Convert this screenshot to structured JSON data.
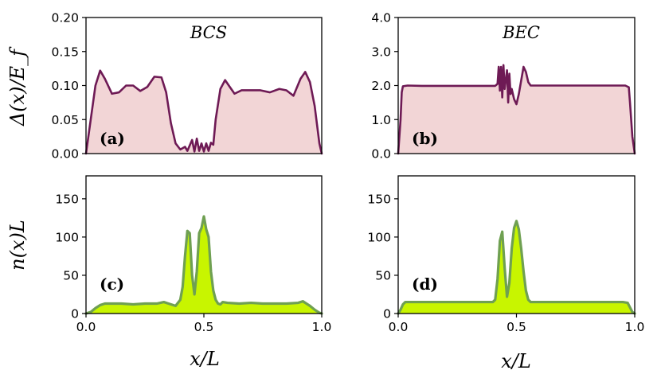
{
  "figure": {
    "ylabel_top": "Δ(x)/E_f",
    "ylabel_bottom": "n(x)L",
    "xlabel": "x/L"
  },
  "colors": {
    "gap_line": "#6e1a55",
    "gap_fill": "#f2d5d6",
    "density_line": "#6fa052",
    "density_fill": "#c8f500"
  },
  "chart_data": [
    {
      "id": "a",
      "type": "area",
      "panel_label": "(a)",
      "title": "BCS",
      "xlabel": "",
      "ylabel": "Δ(x)/E_f",
      "xlim": [
        0,
        1
      ],
      "ylim": [
        0,
        0.2
      ],
      "yticks": [
        0,
        0.05,
        0.1,
        0.15,
        0.2
      ],
      "ytick_labels": [
        "0.00",
        "0.05",
        "0.10",
        "0.15",
        "0.20"
      ],
      "x": [
        0,
        0.02,
        0.04,
        0.06,
        0.08,
        0.11,
        0.14,
        0.17,
        0.2,
        0.23,
        0.26,
        0.29,
        0.32,
        0.34,
        0.36,
        0.38,
        0.4,
        0.42,
        0.43,
        0.44,
        0.45,
        0.46,
        0.47,
        0.48,
        0.49,
        0.5,
        0.51,
        0.52,
        0.53,
        0.54,
        0.55,
        0.57,
        0.59,
        0.61,
        0.63,
        0.66,
        0.7,
        0.74,
        0.78,
        0.82,
        0.85,
        0.88,
        0.91,
        0.93,
        0.95,
        0.97,
        0.99,
        1.0
      ],
      "y": [
        0.0,
        0.05,
        0.1,
        0.122,
        0.11,
        0.088,
        0.09,
        0.1,
        0.1,
        0.092,
        0.098,
        0.113,
        0.112,
        0.09,
        0.045,
        0.015,
        0.006,
        0.01,
        0.004,
        0.012,
        0.02,
        0.003,
        0.022,
        0.004,
        0.015,
        0.003,
        0.015,
        0.004,
        0.016,
        0.013,
        0.05,
        0.095,
        0.108,
        0.098,
        0.088,
        0.093,
        0.093,
        0.093,
        0.09,
        0.095,
        0.093,
        0.085,
        0.11,
        0.12,
        0.105,
        0.07,
        0.015,
        0.0
      ]
    },
    {
      "id": "b",
      "type": "area",
      "panel_label": "(b)",
      "title": "BEC",
      "xlabel": "",
      "ylabel": "",
      "xlim": [
        0,
        1
      ],
      "ylim": [
        0,
        4
      ],
      "yticks": [
        0,
        1,
        2,
        3,
        4
      ],
      "ytick_labels": [
        "0.0",
        "1.0",
        "2.0",
        "3.0",
        "4.0"
      ],
      "x": [
        0,
        0.01,
        0.015,
        0.02,
        0.04,
        0.1,
        0.2,
        0.3,
        0.4,
        0.41,
        0.42,
        0.425,
        0.43,
        0.435,
        0.44,
        0.445,
        0.45,
        0.46,
        0.465,
        0.47,
        0.475,
        0.48,
        0.49,
        0.5,
        0.51,
        0.52,
        0.53,
        0.54,
        0.55,
        0.56,
        0.6,
        0.7,
        0.8,
        0.9,
        0.96,
        0.975,
        0.98,
        0.99,
        1.0
      ],
      "y": [
        0.0,
        1.0,
        1.8,
        1.98,
        2.0,
        1.99,
        1.99,
        1.99,
        1.99,
        1.99,
        2.05,
        2.55,
        1.85,
        2.55,
        1.65,
        2.6,
        1.9,
        2.45,
        1.5,
        2.35,
        1.75,
        1.9,
        1.6,
        1.45,
        1.75,
        2.15,
        2.55,
        2.4,
        2.1,
        2.0,
        2.0,
        2.0,
        2.0,
        2.0,
        2.0,
        1.95,
        1.5,
        0.5,
        0.0
      ]
    },
    {
      "id": "c",
      "type": "area",
      "panel_label": "(c)",
      "title": "",
      "xlabel": "x/L",
      "ylabel": "n(x)L",
      "xlim": [
        0,
        1
      ],
      "ylim": [
        0,
        180
      ],
      "yticks": [
        0,
        50,
        100,
        150
      ],
      "ytick_labels": [
        "0",
        "50",
        "100",
        "150"
      ],
      "xticks": [
        0,
        0.5,
        1
      ],
      "xtick_labels": [
        "0.0",
        "0.5",
        "1.0"
      ],
      "x": [
        0,
        0.02,
        0.04,
        0.06,
        0.08,
        0.1,
        0.15,
        0.2,
        0.25,
        0.3,
        0.33,
        0.35,
        0.38,
        0.4,
        0.41,
        0.42,
        0.43,
        0.44,
        0.45,
        0.46,
        0.47,
        0.48,
        0.49,
        0.5,
        0.51,
        0.52,
        0.53,
        0.54,
        0.55,
        0.56,
        0.57,
        0.58,
        0.6,
        0.65,
        0.7,
        0.75,
        0.8,
        0.85,
        0.9,
        0.92,
        0.95,
        0.97,
        0.99,
        1.0
      ],
      "y": [
        0,
        2,
        7,
        11,
        13,
        13,
        13,
        12,
        13,
        13,
        15,
        13,
        10,
        18,
        35,
        75,
        108,
        105,
        50,
        25,
        55,
        105,
        112,
        127,
        110,
        100,
        55,
        30,
        18,
        13,
        12,
        15,
        14,
        13,
        14,
        13,
        13,
        13,
        14,
        16,
        10,
        5,
        1,
        0
      ]
    },
    {
      "id": "d",
      "type": "area",
      "panel_label": "(d)",
      "title": "",
      "xlabel": "x/L",
      "ylabel": "",
      "xlim": [
        0,
        1
      ],
      "ylim": [
        0,
        180
      ],
      "yticks": [
        0,
        50,
        100,
        150
      ],
      "ytick_labels": [
        "0",
        "50",
        "100",
        "150"
      ],
      "xticks": [
        0,
        0.5,
        1
      ],
      "xtick_labels": [
        "0.0",
        "0.5",
        "1.0"
      ],
      "x": [
        0,
        0.01,
        0.02,
        0.03,
        0.05,
        0.1,
        0.2,
        0.3,
        0.4,
        0.41,
        0.42,
        0.43,
        0.44,
        0.45,
        0.46,
        0.47,
        0.48,
        0.49,
        0.5,
        0.51,
        0.52,
        0.53,
        0.54,
        0.55,
        0.56,
        0.6,
        0.7,
        0.8,
        0.9,
        0.95,
        0.97,
        0.98,
        0.99,
        1.0
      ],
      "y": [
        0,
        5,
        12,
        15,
        15,
        15,
        15,
        15,
        15,
        18,
        45,
        95,
        107,
        60,
        22,
        40,
        85,
        112,
        121,
        110,
        85,
        55,
        30,
        18,
        15,
        15,
        15,
        15,
        15,
        15,
        14,
        8,
        2,
        0
      ]
    }
  ]
}
